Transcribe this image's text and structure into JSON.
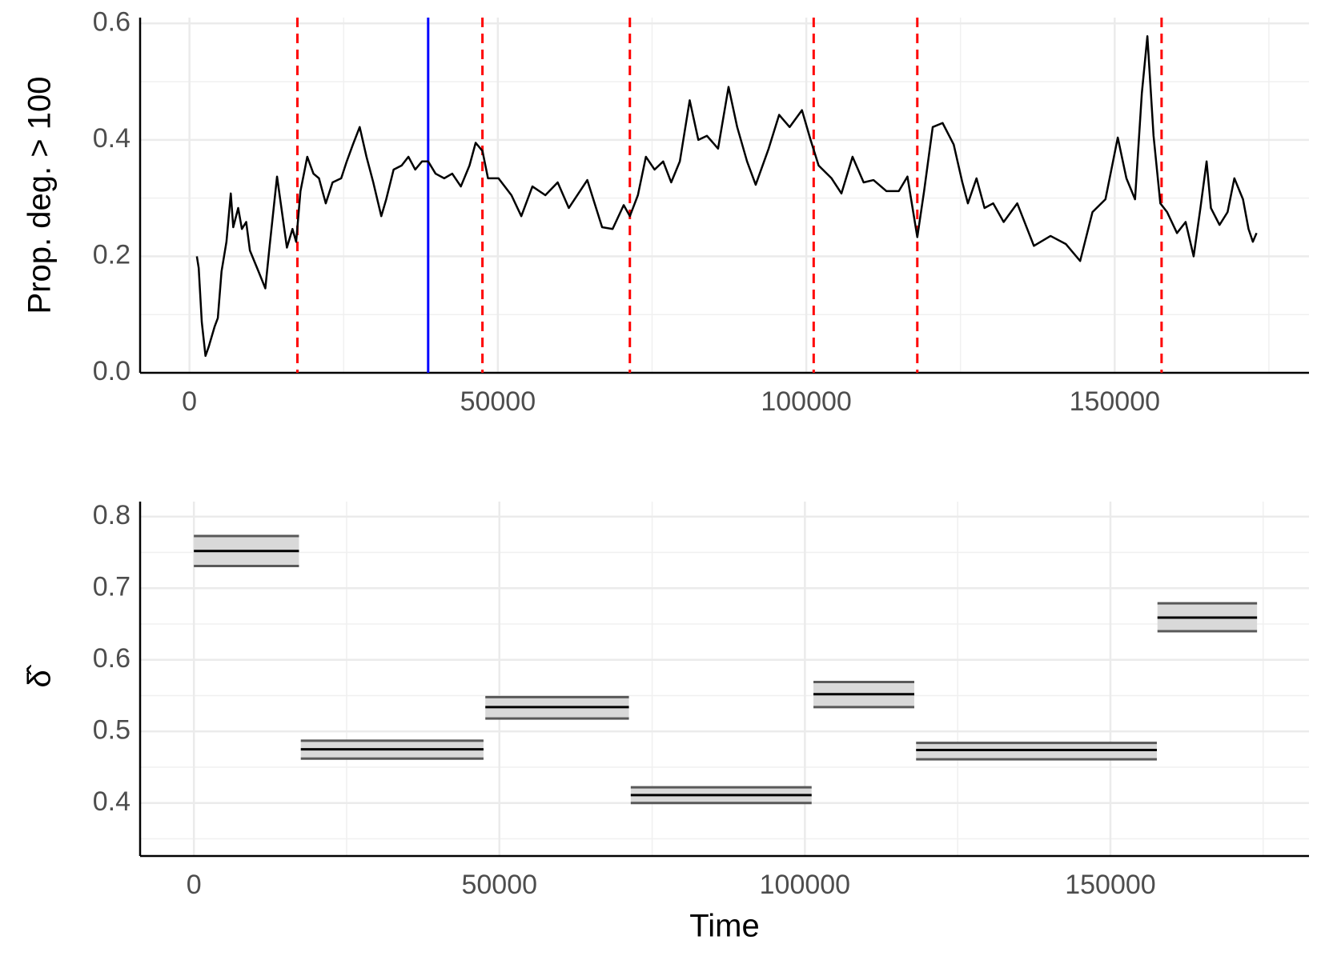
{
  "chart_data": [
    {
      "type": "line",
      "y_label": "Prop. deg. > 100",
      "xlim": [
        -8000,
        181500
      ],
      "ylim": [
        0,
        0.61
      ],
      "xticks": [
        0,
        50000,
        100000,
        150000
      ],
      "yticks": [
        {
          "value": 0,
          "label": "0.0"
        },
        0.2,
        0.4,
        0.6
      ],
      "grid": true,
      "series": [
        {
          "color": "#000000",
          "x": [
            1200,
            1500,
            2000,
            2600,
            3100,
            4100,
            4600,
            5200,
            6000,
            6700,
            7100,
            7900,
            8500,
            9200,
            9800,
            11200,
            12300,
            13000,
            14200,
            15000,
            15800,
            16700,
            17300,
            18000,
            19100,
            20100,
            21000,
            22100,
            23200,
            24600,
            25500,
            26500,
            27600,
            28700,
            29800,
            31100,
            31900,
            33100,
            34400,
            35500,
            36600,
            37700,
            38700,
            39900,
            41300,
            42600,
            44000,
            45400,
            46400,
            47500,
            48400,
            50100,
            52200,
            53800,
            55600,
            57700,
            59700,
            61500,
            64500,
            66900,
            68600,
            70400,
            71400,
            72700,
            74000,
            75400,
            76800,
            78100,
            79500,
            81100,
            82500,
            83900,
            85700,
            87400,
            88800,
            90400,
            91800,
            93900,
            95600,
            97300,
            99300,
            100700,
            102000,
            104100,
            105700,
            107500,
            109300,
            110900,
            113000,
            115000,
            116400,
            118000,
            119100,
            120500,
            122100,
            123900,
            125300,
            126200,
            127600,
            128900,
            130300,
            132000,
            134200,
            136900,
            139600,
            142100,
            144400,
            146400,
            148500,
            150500,
            151900,
            153300,
            154400,
            155300,
            156300,
            157400,
            158500,
            160100,
            161500,
            162800,
            163900,
            164900,
            165600,
            167000,
            168300,
            169400,
            170800,
            171700,
            172400,
            173000
          ],
          "values": [
            0.2,
            0.18,
            0.087,
            0.029,
            0.044,
            0.08,
            0.094,
            0.174,
            0.225,
            0.308,
            0.25,
            0.283,
            0.247,
            0.259,
            0.21,
            0.174,
            0.145,
            0.218,
            0.337,
            0.276,
            0.215,
            0.247,
            0.225,
            0.312,
            0.371,
            0.342,
            0.334,
            0.291,
            0.327,
            0.334,
            0.363,
            0.392,
            0.422,
            0.371,
            0.327,
            0.269,
            0.298,
            0.349,
            0.356,
            0.371,
            0.349,
            0.363,
            0.363,
            0.342,
            0.334,
            0.342,
            0.32,
            0.356,
            0.395,
            0.381,
            0.334,
            0.334,
            0.305,
            0.269,
            0.32,
            0.305,
            0.327,
            0.283,
            0.331,
            0.25,
            0.247,
            0.288,
            0.269,
            0.305,
            0.371,
            0.349,
            0.363,
            0.327,
            0.363,
            0.468,
            0.4,
            0.407,
            0.385,
            0.491,
            0.422,
            0.363,
            0.323,
            0.385,
            0.443,
            0.422,
            0.451,
            0.4,
            0.356,
            0.334,
            0.308,
            0.371,
            0.327,
            0.331,
            0.312,
            0.312,
            0.337,
            0.233,
            0.312,
            0.422,
            0.429,
            0.392,
            0.327,
            0.291,
            0.334,
            0.283,
            0.291,
            0.259,
            0.291,
            0.218,
            0.235,
            0.221,
            0.192,
            0.276,
            0.298,
            0.404,
            0.334,
            0.298,
            0.48,
            0.578,
            0.407,
            0.291,
            0.276,
            0.24,
            0.259,
            0.2,
            0.283,
            0.363,
            0.283,
            0.254,
            0.276,
            0.334,
            0.298,
            0.247,
            0.225,
            0.24
          ]
        }
      ],
      "changepoints": [
        17500,
        47500,
        71400,
        101200,
        118000,
        157600
      ],
      "changepoint_color": "#ff0000",
      "highlight": 38700,
      "highlight_color": "#0000ff"
    },
    {
      "type": "interval",
      "x_label": "Time",
      "y_label": "δ̂",
      "xlim": [
        -8800,
        182500
      ],
      "ylim": [
        0.326,
        0.821
      ],
      "xticks": [
        0,
        50000,
        100000,
        150000
      ],
      "yticks": [
        0.4,
        0.5,
        0.6,
        0.7,
        0.8
      ],
      "grid": true,
      "segments": [
        {
          "start": 0,
          "end": 17200,
          "estimate": 0.752,
          "lower": 0.731,
          "upper": 0.773
        },
        {
          "start": 17500,
          "end": 47400,
          "estimate": 0.475,
          "lower": 0.462,
          "upper": 0.487
        },
        {
          "start": 47700,
          "end": 71200,
          "estimate": 0.534,
          "lower": 0.518,
          "upper": 0.548
        },
        {
          "start": 71500,
          "end": 101100,
          "estimate": 0.411,
          "lower": 0.4,
          "upper": 0.422
        },
        {
          "start": 101400,
          "end": 117900,
          "estimate": 0.552,
          "lower": 0.534,
          "upper": 0.569
        },
        {
          "start": 118200,
          "end": 157600,
          "estimate": 0.474,
          "lower": 0.461,
          "upper": 0.484
        },
        {
          "start": 157700,
          "end": 174000,
          "estimate": 0.659,
          "lower": 0.64,
          "upper": 0.679
        }
      ],
      "band_color": "#d9d9d9",
      "bound_color": "#595959",
      "estimate_color": "#000000"
    }
  ]
}
